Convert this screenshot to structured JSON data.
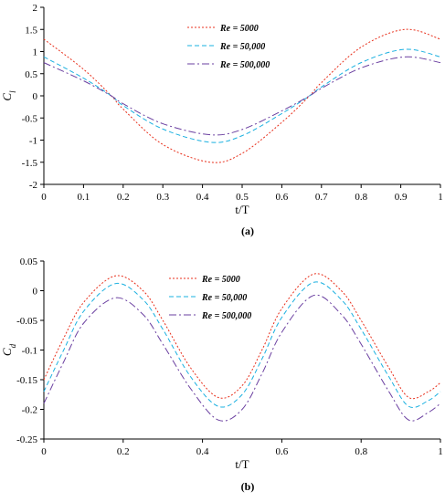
{
  "chart_data": [
    {
      "type": "line",
      "panel_label": "(a)",
      "xlabel": "t/T",
      "ylabel": "C",
      "ylabel_sub": "l",
      "xlim": [
        0,
        1
      ],
      "ylim": [
        -2,
        2
      ],
      "xticks": [
        "0",
        "0.1",
        "0.2",
        "0.3",
        "0.4",
        "0.5",
        "0.6",
        "0.7",
        "0.8",
        "0.9",
        "1"
      ],
      "yticks": [
        "2",
        "1.5",
        "1",
        "0.5",
        "0",
        "-0.5",
        "-1",
        "-1.5",
        "-2"
      ],
      "grid": false,
      "legend_position": "top-center",
      "x": [
        0,
        0.1,
        0.17,
        0.2,
        0.3,
        0.42,
        0.5,
        0.6,
        0.67,
        0.7,
        0.8,
        0.91,
        1
      ],
      "series": [
        {
          "name": "Re = 5000",
          "color": "#e8301c",
          "dash": "2,2",
          "values": [
            1.28,
            0.6,
            0.0,
            -0.3,
            -1.1,
            -1.5,
            -1.3,
            -0.6,
            0.0,
            0.3,
            1.1,
            1.5,
            1.28
          ]
        },
        {
          "name": "Re = 50,000",
          "color": "#1ab0e0",
          "dash": "5,3",
          "values": [
            0.88,
            0.4,
            0.0,
            -0.22,
            -0.75,
            -1.05,
            -0.9,
            -0.4,
            0.0,
            0.2,
            0.75,
            1.05,
            0.88
          ]
        },
        {
          "name": "Re = 500,000",
          "color": "#6a3fa0",
          "dash": "8,3,2,3",
          "values": [
            0.75,
            0.34,
            0.0,
            -0.18,
            -0.63,
            -0.88,
            -0.76,
            -0.34,
            0.0,
            0.17,
            0.63,
            0.88,
            0.75
          ]
        }
      ]
    },
    {
      "type": "line",
      "panel_label": "(b)",
      "xlabel": "t/T",
      "ylabel": "C",
      "ylabel_sub": "d",
      "xlim": [
        0,
        1
      ],
      "ylim": [
        -0.25,
        0.05
      ],
      "xticks": [
        "0",
        "0.2",
        "0.4",
        "0.6",
        "0.8",
        "1"
      ],
      "yticks": [
        "0.05",
        "0",
        "-0.05",
        "-0.1",
        "-0.15",
        "-0.2",
        "-0.25"
      ],
      "grid": false,
      "legend_position": "top-center",
      "x": [
        0,
        0.05,
        0.1,
        0.18,
        0.25,
        0.3,
        0.37,
        0.44,
        0.5,
        0.55,
        0.6,
        0.68,
        0.75,
        0.8,
        0.87,
        0.92,
        0.97,
        1
      ],
      "series": [
        {
          "name": "Re = 5000",
          "color": "#e8301c",
          "dash": "2,2",
          "values": [
            -0.15,
            -0.08,
            -0.02,
            0.025,
            0.0,
            -0.05,
            -0.13,
            -0.18,
            -0.16,
            -0.1,
            -0.03,
            0.028,
            0.0,
            -0.05,
            -0.13,
            -0.18,
            -0.17,
            -0.155
          ]
        },
        {
          "name": "Re = 50,000",
          "color": "#1ab0e0",
          "dash": "5,3",
          "values": [
            -0.17,
            -0.1,
            -0.035,
            0.012,
            -0.015,
            -0.065,
            -0.145,
            -0.195,
            -0.175,
            -0.115,
            -0.045,
            0.014,
            -0.015,
            -0.065,
            -0.145,
            -0.195,
            -0.185,
            -0.17
          ]
        },
        {
          "name": "Re = 500,000",
          "color": "#6a3fa0",
          "dash": "8,3,2,3",
          "values": [
            -0.19,
            -0.12,
            -0.055,
            -0.012,
            -0.04,
            -0.09,
            -0.165,
            -0.218,
            -0.2,
            -0.14,
            -0.07,
            -0.008,
            -0.04,
            -0.09,
            -0.17,
            -0.218,
            -0.205,
            -0.19
          ]
        }
      ]
    }
  ]
}
